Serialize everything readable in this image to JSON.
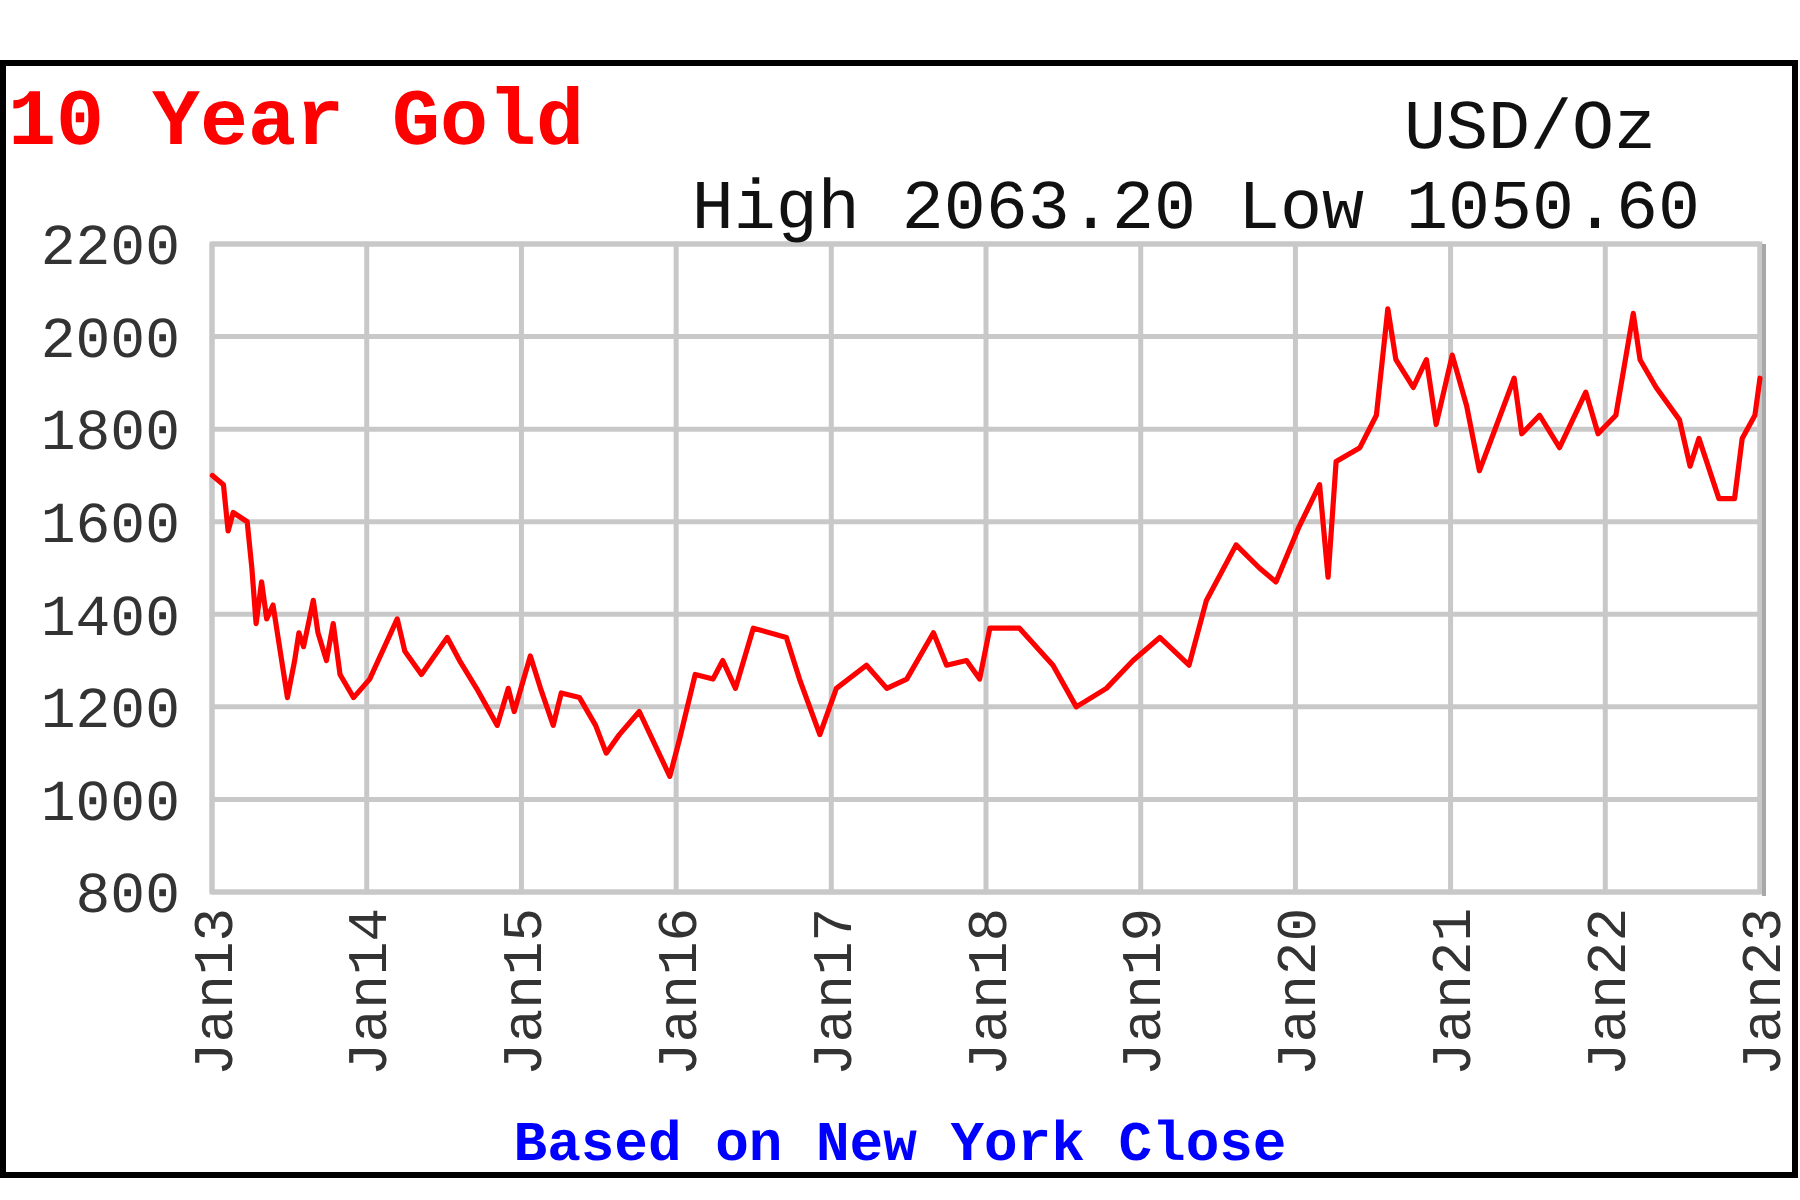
{
  "chart_data": {
    "type": "line",
    "title": "10 Year Gold",
    "subtitle": "High 2063.20 Low 1050.60",
    "ylabel": "USD/Oz",
    "annotations": [
      "Based on New York Close"
    ],
    "x": [
      "2013-01-02",
      "2013-01-28",
      "2013-02-08",
      "2013-02-20",
      "2013-03-25",
      "2013-04-05",
      "2013-04-15",
      "2013-04-28",
      "2013-05-10",
      "2013-05-25",
      "2013-06-28",
      "2013-07-15",
      "2013-07-25",
      "2013-08-05",
      "2013-08-28",
      "2013-09-08",
      "2013-09-28",
      "2013-10-14",
      "2013-10-30",
      "2013-12-01",
      "2014-01-08",
      "2014-03-14",
      "2014-04-01",
      "2014-05-10",
      "2014-07-10",
      "2014-08-08",
      "2014-09-17",
      "2014-11-05",
      "2014-12-01",
      "2014-12-15",
      "2015-01-22",
      "2015-02-15",
      "2015-03-17",
      "2015-04-05",
      "2015-05-18",
      "2015-06-25",
      "2015-07-20",
      "2015-08-20",
      "2015-10-06",
      "2015-12-17",
      "2016-01-09",
      "2016-02-15",
      "2016-03-28",
      "2016-04-20",
      "2016-05-20",
      "2016-07-01",
      "2016-09-17",
      "2016-10-18",
      "2016-12-05",
      "2017-01-13",
      "2017-03-25",
      "2017-05-12",
      "2017-06-28",
      "2017-08-30",
      "2017-09-30",
      "2017-11-16",
      "2017-12-17",
      "2018-01-10",
      "2018-03-21",
      "2018-06-08",
      "2018-08-02",
      "2018-10-12",
      "2018-12-14",
      "2019-02-15",
      "2019-04-25",
      "2019-06-05",
      "2019-08-14",
      "2019-10-08",
      "2019-11-16",
      "2020-01-10",
      "2020-02-27",
      "2020-03-18",
      "2020-04-06",
      "2020-06-01",
      "2020-07-10",
      "2020-08-06",
      "2020-08-25",
      "2020-10-05",
      "2020-11-05",
      "2020-11-28",
      "2021-01-05",
      "2021-02-08",
      "2021-03-10",
      "2021-04-12",
      "2021-05-31",
      "2021-06-18",
      "2021-07-30",
      "2021-09-15",
      "2021-11-16",
      "2021-12-15",
      "2022-01-26",
      "2022-03-08",
      "2022-03-24",
      "2022-05-01",
      "2022-06-25",
      "2022-07-20",
      "2022-08-10",
      "2022-09-26",
      "2022-11-02",
      "2022-11-20",
      "2022-12-20",
      "2023-01-01"
    ],
    "series": [
      {
        "color": "#ff0000",
        "values": [
          1700,
          1680,
          1580,
          1620,
          1600,
          1500,
          1380,
          1470,
          1390,
          1420,
          1220,
          1300,
          1360,
          1330,
          1430,
          1360,
          1300,
          1380,
          1270,
          1220,
          1260,
          1390,
          1320,
          1270,
          1350,
          1300,
          1240,
          1160,
          1240,
          1190,
          1310,
          1240,
          1160,
          1230,
          1220,
          1160,
          1100,
          1140,
          1190,
          1050,
          1130,
          1270,
          1260,
          1300,
          1240,
          1370,
          1350,
          1260,
          1140,
          1240,
          1290,
          1240,
          1260,
          1360,
          1290,
          1300,
          1260,
          1370,
          1370,
          1290,
          1200,
          1240,
          1300,
          1350,
          1290,
          1430,
          1550,
          1500,
          1470,
          1590,
          1680,
          1480,
          1730,
          1760,
          1830,
          2060,
          1950,
          1890,
          1950,
          1810,
          1960,
          1850,
          1710,
          1790,
          1910,
          1790,
          1830,
          1760,
          1880,
          1790,
          1830,
          2050,
          1950,
          1890,
          1820,
          1720,
          1780,
          1650,
          1650,
          1780,
          1830,
          1910
        ]
      }
    ],
    "xlim": [
      "2013-01-01",
      "2023-01-01"
    ],
    "xticks": [
      {
        "value": "2013-01-01",
        "label": "Jan13"
      },
      {
        "value": "2014-01-01",
        "label": "Jan14"
      },
      {
        "value": "2015-01-01",
        "label": "Jan15"
      },
      {
        "value": "2016-01-01",
        "label": "Jan16"
      },
      {
        "value": "2017-01-01",
        "label": "Jan17"
      },
      {
        "value": "2018-01-01",
        "label": "Jan18"
      },
      {
        "value": "2019-01-01",
        "label": "Jan19"
      },
      {
        "value": "2020-01-01",
        "label": "Jan20"
      },
      {
        "value": "2021-01-01",
        "label": "Jan21"
      },
      {
        "value": "2022-01-01",
        "label": "Jan22"
      },
      {
        "value": "2023-01-01",
        "label": "Jan23"
      }
    ],
    "ylim": [
      800,
      2200
    ],
    "yticks": [
      800,
      1000,
      1200,
      1400,
      1600,
      1800,
      2000,
      2200
    ],
    "grid": true
  }
}
